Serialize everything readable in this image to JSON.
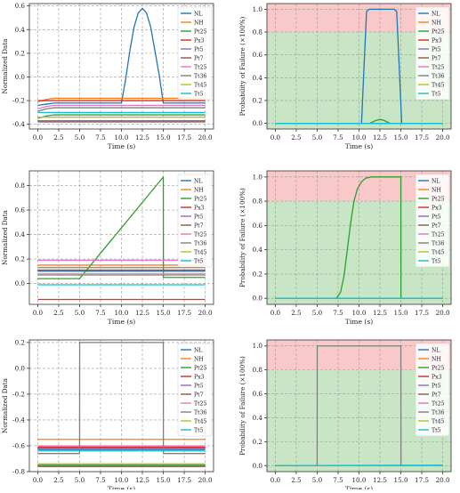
{
  "legend_names": [
    "NL",
    "NH",
    "Pt25",
    "Px3",
    "Pt5",
    "Pt7",
    "Tt25",
    "Tt36",
    "Tt45",
    "Tt5"
  ],
  "series_colors": [
    "#1f77b4",
    "#ff7f0e",
    "#2ca02c",
    "#d62728",
    "#9467bd",
    "#8c564b",
    "#e377c2",
    "#7f7f7f",
    "#bcbd22",
    "#17becf"
  ],
  "zone_colors": {
    "failure": "#f9c9c9",
    "safe": "#c8e6c6"
  },
  "chart_data": [
    {
      "id": "r1-left",
      "type": "line",
      "title": "",
      "xlabel": "Time (s)",
      "ylabel": "Normalized Data",
      "xlim": [
        -1,
        21
      ],
      "ylim": [
        -0.44,
        0.62
      ],
      "xticks": [
        0,
        2.5,
        5,
        7.5,
        10,
        12.5,
        15,
        17.5,
        20
      ],
      "xtick_labels": [
        "0.0",
        "2.5",
        "5.0",
        "7.5",
        "10.0",
        "12.5",
        "15.0",
        "17.5",
        "20.0"
      ],
      "yticks": [
        -0.4,
        -0.2,
        0.0,
        0.2,
        0.4,
        0.6
      ],
      "ytick_labels": [
        "-0.4",
        "-0.2",
        "0.0",
        "0.2",
        "0.4",
        "0.6"
      ],
      "grid": true,
      "legend_position": "top-right",
      "series": [
        {
          "name": "NL",
          "x": [
            0,
            1,
            2,
            10,
            10.5,
            11,
            11.5,
            12,
            12.5,
            13,
            13.5,
            14,
            14.5,
            15,
            20
          ],
          "y": [
            -0.24,
            -0.23,
            -0.22,
            -0.22,
            -0.02,
            0.22,
            0.42,
            0.54,
            0.58,
            0.54,
            0.42,
            0.22,
            0.02,
            -0.22,
            -0.22
          ]
        },
        {
          "name": "NH",
          "x": [
            0,
            1,
            2,
            20
          ],
          "y": [
            -0.21,
            -0.19,
            -0.18,
            -0.18
          ]
        },
        {
          "name": "Pt25",
          "x": [
            0,
            1,
            2,
            20
          ],
          "y": [
            -0.35,
            -0.33,
            -0.32,
            -0.32
          ]
        },
        {
          "name": "Px3",
          "x": [
            0,
            20
          ],
          "y": [
            -0.2,
            -0.2
          ]
        },
        {
          "name": "Pt5",
          "x": [
            0,
            20
          ],
          "y": [
            -0.37,
            -0.37
          ]
        },
        {
          "name": "Pt7",
          "x": [
            0,
            20
          ],
          "y": [
            -0.38,
            -0.38
          ]
        },
        {
          "name": "Tt25",
          "x": [
            0,
            1,
            2,
            20
          ],
          "y": [
            -0.27,
            -0.25,
            -0.24,
            -0.24
          ]
        },
        {
          "name": "Tt36",
          "x": [
            0,
            1,
            2,
            20
          ],
          "y": [
            -0.29,
            -0.27,
            -0.26,
            -0.26
          ]
        },
        {
          "name": "Tt45",
          "x": [
            0,
            20
          ],
          "y": [
            -0.34,
            -0.34
          ]
        },
        {
          "name": "Tt5",
          "x": [
            0,
            20
          ],
          "y": [
            -0.3,
            -0.3
          ]
        }
      ]
    },
    {
      "id": "r1-right",
      "type": "line",
      "title": "",
      "xlabel": "Time (s)",
      "ylabel": "Probability of Failure (×100%)",
      "xlim": [
        -1,
        21
      ],
      "ylim": [
        -0.05,
        1.05
      ],
      "xticks": [
        0,
        2.5,
        5,
        7.5,
        10,
        12.5,
        15,
        17.5,
        20
      ],
      "xtick_labels": [
        "0.0",
        "2.5",
        "5.0",
        "7.5",
        "10.0",
        "12.5",
        "15.0",
        "17.5",
        "20.0"
      ],
      "yticks": [
        0,
        0.2,
        0.4,
        0.6,
        0.8,
        1.0
      ],
      "ytick_labels": [
        "0.0",
        "0.2",
        "0.4",
        "0.6",
        "0.8",
        "1.0"
      ],
      "grid": true,
      "legend_position": "top-right",
      "zones": {
        "safe": [
          -0.05,
          0.8
        ],
        "failure": [
          0.8,
          1.05
        ]
      },
      "series": [
        {
          "name": "NL",
          "x": [
            0,
            10.3,
            10.6,
            10.9,
            11.2,
            14.2,
            14.5,
            14.8,
            15.1,
            20
          ],
          "y": [
            0,
            0,
            0.5,
            0.98,
            1,
            1,
            0.98,
            0.5,
            0,
            0
          ]
        },
        {
          "name": "NH",
          "x": [
            0,
            20
          ],
          "y": [
            0,
            0
          ]
        },
        {
          "name": "Pt25",
          "x": [
            0,
            11.3,
            12,
            12.5,
            13,
            13.7,
            20
          ],
          "y": [
            0,
            0,
            0.025,
            0.035,
            0.025,
            0,
            0
          ]
        },
        {
          "name": "Px3",
          "x": [
            0,
            20
          ],
          "y": [
            0,
            0
          ]
        },
        {
          "name": "Pt5",
          "x": [
            0,
            20
          ],
          "y": [
            0,
            0
          ]
        },
        {
          "name": "Pt7",
          "x": [
            0,
            20
          ],
          "y": [
            0,
            0
          ]
        },
        {
          "name": "Tt25",
          "x": [
            0,
            20
          ],
          "y": [
            0,
            0
          ]
        },
        {
          "name": "Tt36",
          "x": [
            0,
            20
          ],
          "y": [
            0,
            0
          ]
        },
        {
          "name": "Tt45",
          "x": [
            0,
            20
          ],
          "y": [
            0,
            0
          ]
        },
        {
          "name": "Tt5",
          "x": [
            0,
            20
          ],
          "y": [
            0,
            0
          ]
        }
      ]
    },
    {
      "id": "r2-left",
      "type": "line",
      "title": "",
      "xlabel": "Time (s)",
      "ylabel": "Normalized Data",
      "xlim": [
        -1,
        21
      ],
      "ylim": [
        -0.17,
        0.92
      ],
      "xticks": [
        0,
        2.5,
        5,
        7.5,
        10,
        12.5,
        15,
        17.5,
        20
      ],
      "xtick_labels": [
        "0.0",
        "2.5",
        "5.0",
        "7.5",
        "10.0",
        "12.5",
        "15.0",
        "17.5",
        "20.0"
      ],
      "yticks": [
        0,
        0.2,
        0.4,
        0.6,
        0.8
      ],
      "ytick_labels": [
        "0.0",
        "0.2",
        "0.4",
        "0.6",
        "0.8"
      ],
      "grid": true,
      "legend_position": "top-right",
      "series": [
        {
          "name": "NL",
          "x": [
            0,
            20
          ],
          "y": [
            0.1,
            0.1
          ]
        },
        {
          "name": "NH",
          "x": [
            0,
            20
          ],
          "y": [
            0.15,
            0.15
          ]
        },
        {
          "name": "Pt25",
          "x": [
            0,
            5,
            15,
            15.01,
            20
          ],
          "y": [
            0.04,
            0.04,
            0.87,
            0.05,
            0.05
          ]
        },
        {
          "name": "Px3",
          "x": [
            0,
            20
          ],
          "y": [
            0.11,
            0.11
          ]
        },
        {
          "name": "Pt5",
          "x": [
            0,
            20
          ],
          "y": [
            0.07,
            0.07
          ]
        },
        {
          "name": "Pt7",
          "x": [
            0,
            20
          ],
          "y": [
            -0.13,
            -0.13
          ]
        },
        {
          "name": "Tt25",
          "x": [
            0,
            20
          ],
          "y": [
            0.19,
            0.19
          ]
        },
        {
          "name": "Tt36",
          "x": [
            0,
            20
          ],
          "y": [
            0.13,
            0.13
          ]
        },
        {
          "name": "Tt45",
          "x": [
            0,
            20
          ],
          "y": [
            0.08,
            0.08
          ]
        },
        {
          "name": "Tt5",
          "x": [
            0,
            20
          ],
          "y": [
            -0.01,
            -0.01
          ]
        }
      ]
    },
    {
      "id": "r2-right",
      "type": "line",
      "title": "",
      "xlabel": "Time (s)",
      "ylabel": "Probability of Failure (×100%)",
      "xlim": [
        -1,
        21
      ],
      "ylim": [
        -0.05,
        1.05
      ],
      "xticks": [
        0,
        2.5,
        5,
        7.5,
        10,
        12.5,
        15,
        17.5,
        20
      ],
      "xtick_labels": [
        "0.0",
        "2.5",
        "5.0",
        "7.5",
        "10.0",
        "12.5",
        "15.0",
        "17.5",
        "20.0"
      ],
      "yticks": [
        0,
        0.2,
        0.4,
        0.6,
        0.8,
        1.0
      ],
      "ytick_labels": [
        "0.0",
        "0.2",
        "0.4",
        "0.6",
        "0.8",
        "1.0"
      ],
      "grid": true,
      "legend_position": "top-right",
      "zones": {
        "safe": [
          -0.05,
          0.8
        ],
        "failure": [
          0.8,
          1.05
        ]
      },
      "series": [
        {
          "name": "NL",
          "x": [
            0,
            20
          ],
          "y": [
            0,
            0
          ]
        },
        {
          "name": "NH",
          "x": [
            0,
            20
          ],
          "y": [
            0,
            0
          ]
        },
        {
          "name": "Pt25",
          "x": [
            0,
            7.3,
            7.8,
            8.2,
            8.6,
            9,
            9.4,
            9.8,
            10.3,
            10.8,
            11.5,
            12.5,
            15,
            15.01,
            20
          ],
          "y": [
            0,
            0,
            0.05,
            0.18,
            0.4,
            0.62,
            0.8,
            0.9,
            0.96,
            0.99,
            1,
            1,
            1,
            0,
            0
          ]
        },
        {
          "name": "Px3",
          "x": [
            0,
            20
          ],
          "y": [
            0,
            0
          ]
        },
        {
          "name": "Pt5",
          "x": [
            0,
            20
          ],
          "y": [
            0,
            0
          ]
        },
        {
          "name": "Pt7",
          "x": [
            0,
            20
          ],
          "y": [
            0,
            0
          ]
        },
        {
          "name": "Tt25",
          "x": [
            0,
            20
          ],
          "y": [
            0,
            0
          ]
        },
        {
          "name": "Tt36",
          "x": [
            0,
            20
          ],
          "y": [
            0,
            0
          ]
        },
        {
          "name": "Tt45",
          "x": [
            0,
            20
          ],
          "y": [
            0,
            0
          ]
        },
        {
          "name": "Tt5",
          "x": [
            0,
            20
          ],
          "y": [
            0,
            0
          ]
        }
      ]
    },
    {
      "id": "r3-left",
      "type": "line",
      "title": "",
      "xlabel": "Time (s)",
      "ylabel": "Normalized Data",
      "xlim": [
        -1,
        21
      ],
      "ylim": [
        -0.8,
        0.22
      ],
      "xticks": [
        0,
        2.5,
        5,
        7.5,
        10,
        12.5,
        15,
        17.5,
        20
      ],
      "xtick_labels": [
        "0.0",
        "2.5",
        "5.0",
        "7.5",
        "10.0",
        "12.5",
        "15.0",
        "17.5",
        "20.0"
      ],
      "yticks": [
        -0.8,
        -0.6,
        -0.4,
        -0.2,
        0.0,
        0.2
      ],
      "ytick_labels": [
        "-0.8",
        "-0.6",
        "-0.4",
        "-0.2",
        "0.0",
        "0.2"
      ],
      "grid": true,
      "legend_position": "top-right",
      "series": [
        {
          "name": "NL",
          "x": [
            0,
            20
          ],
          "y": [
            -0.62,
            -0.62
          ]
        },
        {
          "name": "NH",
          "x": [
            0,
            20
          ],
          "y": [
            -0.55,
            -0.55
          ]
        },
        {
          "name": "Pt25",
          "x": [
            0,
            20
          ],
          "y": [
            -0.75,
            -0.75
          ]
        },
        {
          "name": "Px3",
          "x": [
            0,
            20
          ],
          "y": [
            -0.61,
            -0.61
          ]
        },
        {
          "name": "Pt5",
          "x": [
            0,
            20
          ],
          "y": [
            -0.63,
            -0.63
          ]
        },
        {
          "name": "Pt7",
          "x": [
            0,
            20
          ],
          "y": [
            -0.76,
            -0.76
          ]
        },
        {
          "name": "Tt25",
          "x": [
            0,
            20
          ],
          "y": [
            -0.6,
            -0.6
          ]
        },
        {
          "name": "Tt36",
          "x": [
            0,
            5,
            5.01,
            15,
            15.01,
            20
          ],
          "y": [
            -0.66,
            -0.66,
            0.2,
            0.2,
            -0.66,
            -0.66
          ]
        },
        {
          "name": "Tt45",
          "x": [
            0,
            20
          ],
          "y": [
            -0.74,
            -0.74
          ]
        },
        {
          "name": "Tt5",
          "x": [
            0,
            20
          ],
          "y": [
            -0.64,
            -0.64
          ]
        }
      ]
    },
    {
      "id": "r3-right",
      "type": "line",
      "title": "",
      "xlabel": "Time (s)",
      "ylabel": "Probability of Failure (×100%)",
      "xlim": [
        -1,
        21
      ],
      "ylim": [
        -0.05,
        1.05
      ],
      "xticks": [
        0,
        2.5,
        5,
        7.5,
        10,
        12.5,
        15,
        17.5,
        20
      ],
      "xtick_labels": [
        "0.0",
        "2.5",
        "5.0",
        "7.5",
        "10.0",
        "12.5",
        "15.0",
        "17.5",
        "20.0"
      ],
      "yticks": [
        0,
        0.2,
        0.4,
        0.6,
        0.8,
        1.0
      ],
      "ytick_labels": [
        "0.0",
        "0.2",
        "0.4",
        "0.6",
        "0.8",
        "1.0"
      ],
      "grid": true,
      "legend_position": "top-right",
      "zones": {
        "safe": [
          -0.05,
          0.8
        ],
        "failure": [
          0.8,
          1.05
        ]
      },
      "series": [
        {
          "name": "NL",
          "x": [
            0,
            20
          ],
          "y": [
            0,
            0
          ]
        },
        {
          "name": "NH",
          "x": [
            0,
            20
          ],
          "y": [
            0,
            0
          ]
        },
        {
          "name": "Pt25",
          "x": [
            0,
            20
          ],
          "y": [
            0,
            0
          ]
        },
        {
          "name": "Px3",
          "x": [
            0,
            20
          ],
          "y": [
            0,
            0
          ]
        },
        {
          "name": "Pt5",
          "x": [
            0,
            20
          ],
          "y": [
            0,
            0
          ]
        },
        {
          "name": "Pt7",
          "x": [
            0,
            20
          ],
          "y": [
            0,
            0
          ]
        },
        {
          "name": "Tt25",
          "x": [
            0,
            20
          ],
          "y": [
            0,
            0
          ]
        },
        {
          "name": "Tt36",
          "x": [
            0,
            5,
            5.01,
            15,
            15.01,
            20
          ],
          "y": [
            0,
            0,
            1,
            1,
            0,
            0
          ]
        },
        {
          "name": "Tt45",
          "x": [
            0,
            20
          ],
          "y": [
            0,
            0
          ]
        },
        {
          "name": "Tt5",
          "x": [
            0,
            20
          ],
          "y": [
            0,
            0.005
          ]
        }
      ]
    }
  ]
}
